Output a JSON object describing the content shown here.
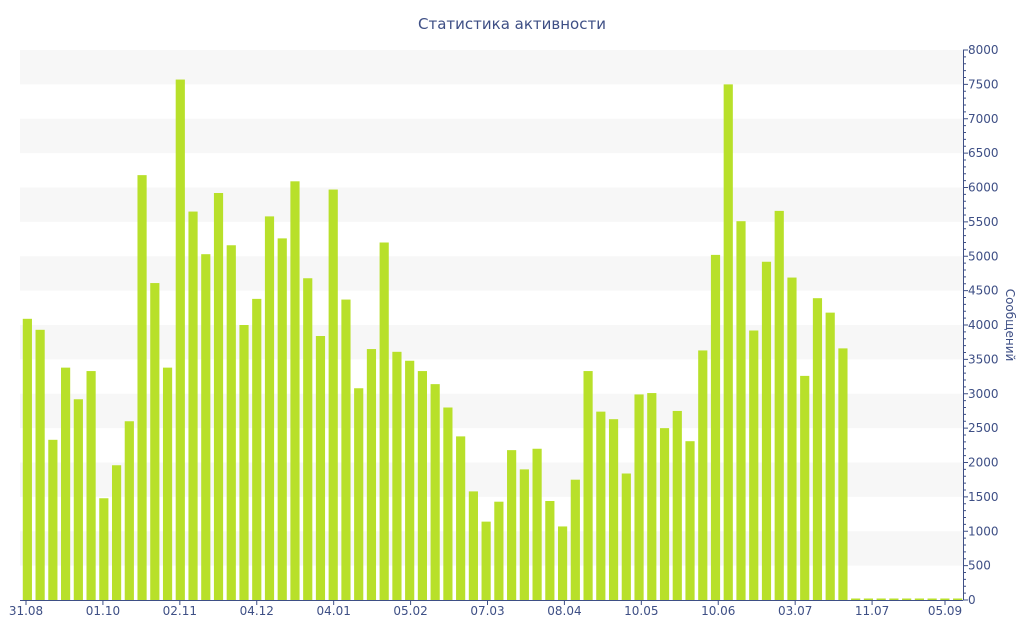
{
  "chart_data": {
    "type": "bar",
    "title": "Статистика активности",
    "xlabel": "",
    "ylabel": "Сообщений",
    "ylim": [
      0,
      8000
    ],
    "yticks": [
      0,
      500,
      1000,
      1500,
      2000,
      2500,
      3000,
      3500,
      4000,
      4500,
      5000,
      5500,
      6000,
      6500,
      7000,
      7500,
      8000
    ],
    "xtick_labels": [
      "31.08",
      "01.10",
      "02.11",
      "04.12",
      "04.01",
      "05.02",
      "07.03",
      "08.04",
      "10.05",
      "10.06",
      "03.07",
      "11.07",
      "05.09"
    ],
    "bar_color": "#b8e02a",
    "grid_band_color": "#f7f7f7",
    "axis_color": "#3e4f85",
    "values": [
      4090,
      3930,
      2330,
      3380,
      2920,
      3330,
      1480,
      1960,
      2600,
      6180,
      4610,
      3380,
      7570,
      5650,
      5030,
      5920,
      5160,
      4000,
      4380,
      5580,
      5260,
      6090,
      4680,
      3840,
      5970,
      4370,
      3080,
      3650,
      5200,
      3610,
      3480,
      3330,
      3140,
      2800,
      2380,
      1580,
      1140,
      1430,
      2180,
      1900,
      2200,
      1440,
      1070,
      1750,
      3330,
      2740,
      2630,
      1840,
      2990,
      3010,
      2500,
      2750,
      2310,
      3630,
      5020,
      7500,
      5510,
      3920,
      4920,
      5660,
      4690,
      3260,
      4390,
      4180,
      3660,
      0,
      0,
      0,
      0,
      0,
      0,
      0,
      0,
      0
    ]
  }
}
